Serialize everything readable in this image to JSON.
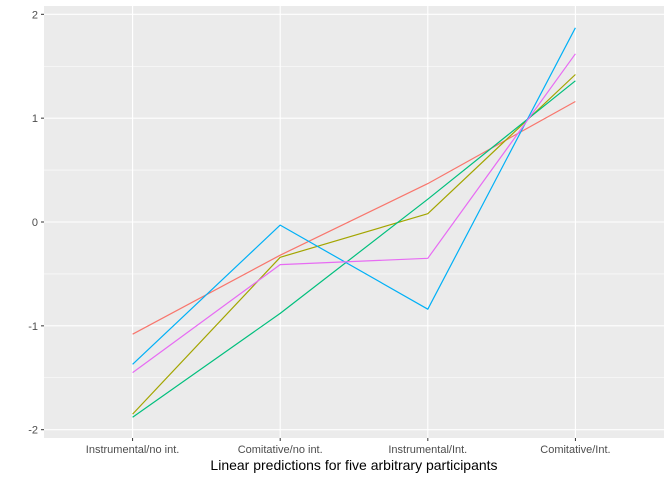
{
  "chart_data": {
    "type": "line",
    "title": "",
    "xlabel": "Linear predictions for five arbitrary participants",
    "ylabel": "",
    "categories": [
      "Instrumental/no int.",
      "Comitative/no int.",
      "Instrumental/Int.",
      "Comitative/Int."
    ],
    "ylim": [
      -2.08,
      2.08
    ],
    "yticks": [
      -2,
      -1,
      0,
      1,
      2
    ],
    "grid": true,
    "legend": "none",
    "series": [
      {
        "color": "#F8766D",
        "values": [
          -1.08,
          -0.32,
          0.37,
          1.16
        ]
      },
      {
        "color": "#A3A500",
        "values": [
          -1.85,
          -0.34,
          0.08,
          1.42
        ]
      },
      {
        "color": "#00BF7D",
        "values": [
          -1.88,
          -0.88,
          0.22,
          1.36
        ]
      },
      {
        "color": "#00B0F6",
        "values": [
          -1.37,
          -0.03,
          -0.84,
          1.87
        ]
      },
      {
        "color": "#E76BF3",
        "values": [
          -1.45,
          -0.41,
          -0.35,
          1.62
        ]
      }
    ]
  }
}
